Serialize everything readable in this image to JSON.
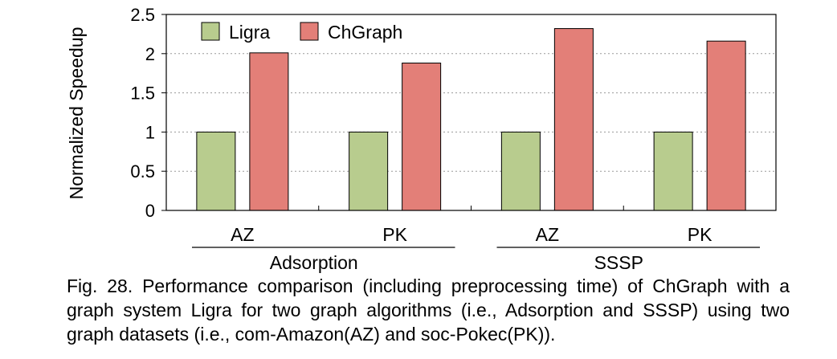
{
  "chart_data": {
    "type": "bar",
    "ylabel": "Normalized Speedup",
    "ylim": [
      0,
      2.5
    ],
    "yticks": [
      "0",
      "0.5",
      "1",
      "1.5",
      "2",
      "2.5"
    ],
    "grid": "horizontal dotted",
    "legend_position": "top-left",
    "groups": [
      {
        "label": "Adsorption",
        "categories": [
          "AZ",
          "PK"
        ]
      },
      {
        "label": "SSSP",
        "categories": [
          "AZ",
          "PK"
        ]
      }
    ],
    "categories": [
      "AZ",
      "PK",
      "AZ",
      "PK"
    ],
    "series": [
      {
        "name": "Ligra",
        "color": "#b8cc8e",
        "values": [
          1,
          1,
          1,
          1
        ]
      },
      {
        "name": "ChGraph",
        "color": "#e37f78",
        "values": [
          2.01,
          1.88,
          2.32,
          2.16
        ]
      }
    ]
  },
  "caption": "Fig. 28. Performance comparison (including preprocessing time) of ChGraph with a graph system Ligra for two graph algorithms (i.e., Adsorption and SSSP) using two graph datasets (i.e., com-Amazon(AZ) and soc-Pokec(PK))."
}
